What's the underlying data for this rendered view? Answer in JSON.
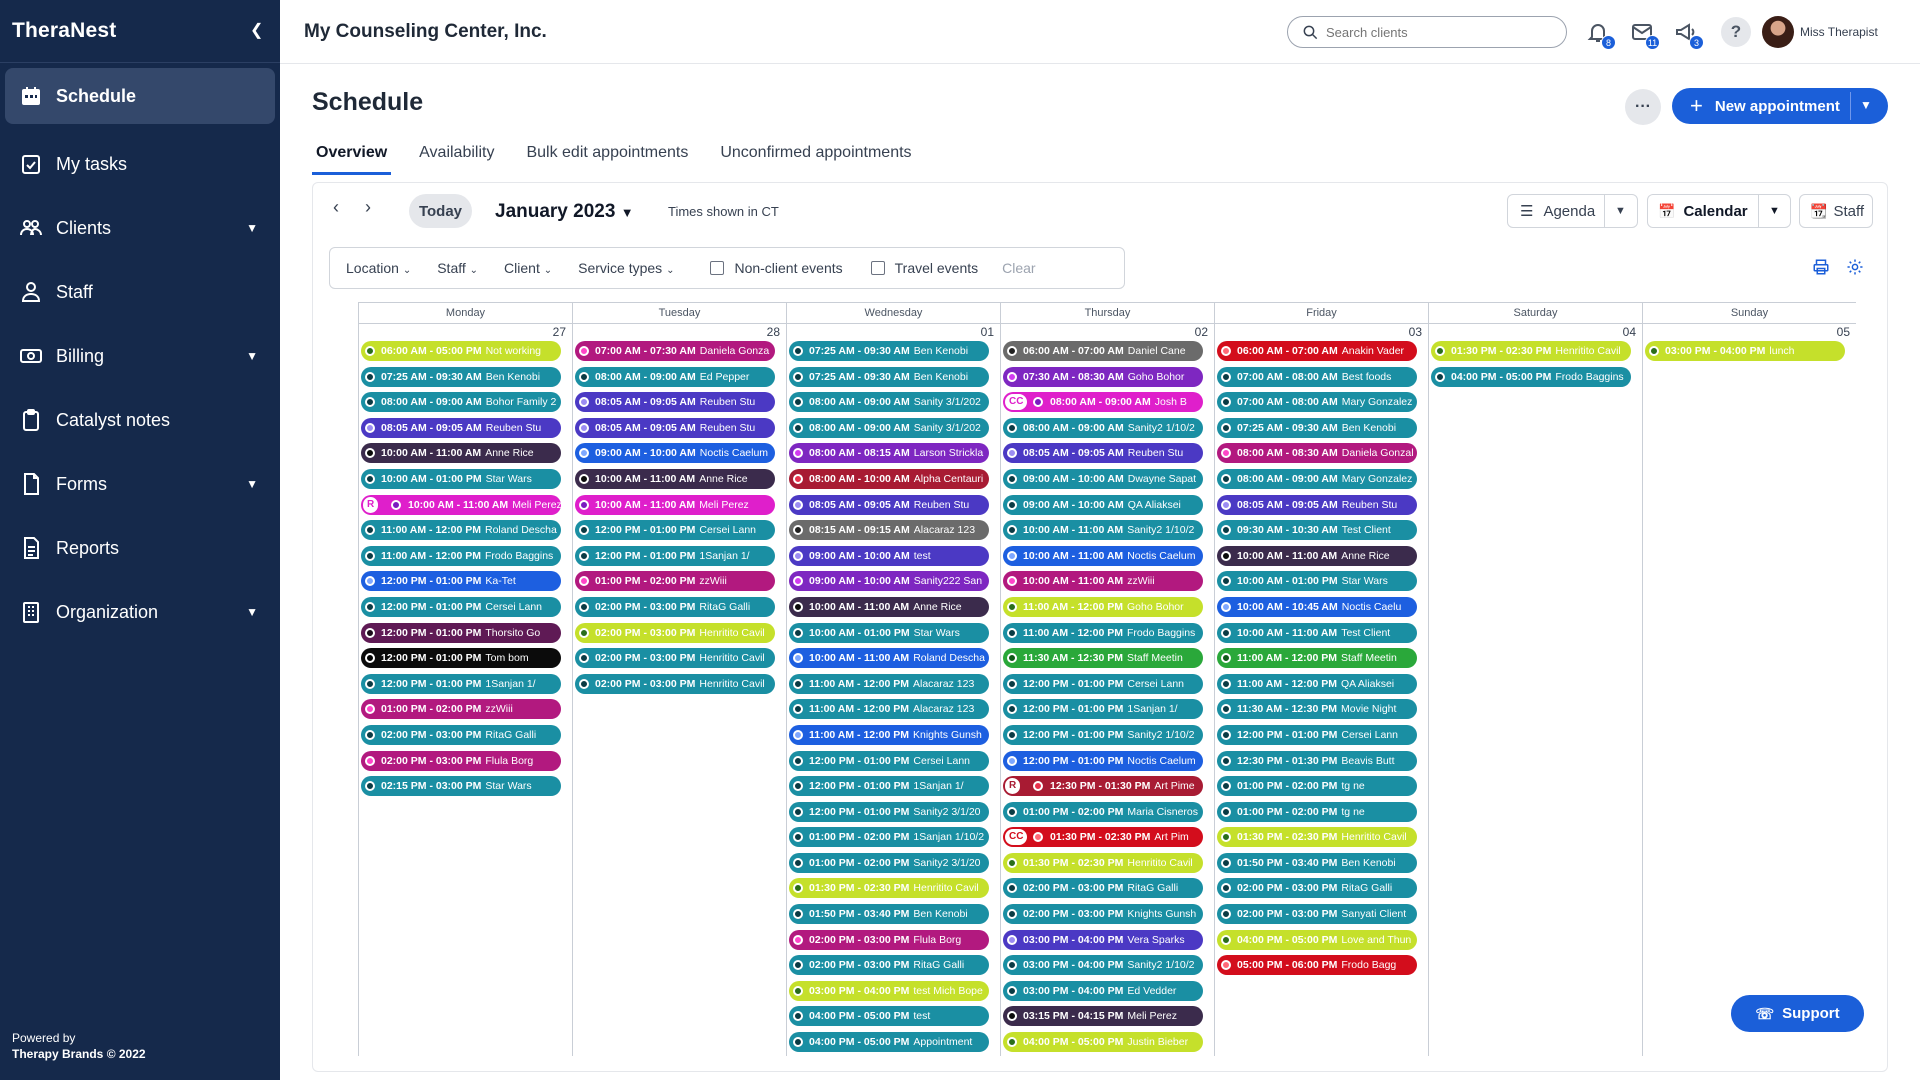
{
  "sidebar": {
    "logo": "TheraNest",
    "items": [
      {
        "label": "Schedule",
        "icon": "calendar-icon",
        "active": true,
        "chevron": false
      },
      {
        "label": "My tasks",
        "icon": "task-check-icon",
        "active": false,
        "chevron": false
      },
      {
        "label": "Clients",
        "icon": "users-icon",
        "active": false,
        "chevron": true
      },
      {
        "label": "Staff",
        "icon": "staff-icon",
        "active": false,
        "chevron": false
      },
      {
        "label": "Billing",
        "icon": "money-icon",
        "active": false,
        "chevron": true
      },
      {
        "label": "Catalyst notes",
        "icon": "clipboard-icon",
        "active": false,
        "chevron": false
      },
      {
        "label": "Forms",
        "icon": "form-icon",
        "active": false,
        "chevron": true
      },
      {
        "label": "Reports",
        "icon": "report-icon",
        "active": false,
        "chevron": false
      },
      {
        "label": "Organization",
        "icon": "building-icon",
        "active": false,
        "chevron": true
      }
    ],
    "powered_line1": "Powered by",
    "powered_line2": "Therapy Brands © 2022"
  },
  "header": {
    "org_name": "My Counseling Center, Inc.",
    "search_placeholder": "Search clients",
    "notifications_count": "8",
    "messages_count": "11",
    "announcements_count": "3",
    "help_label": "?",
    "user_name": "Miss Therapist"
  },
  "page": {
    "title": "Schedule",
    "more_label": "···",
    "new_appointment_label": "New appointment",
    "tabs": [
      "Overview",
      "Availability",
      "Bulk edit appointments",
      "Unconfirmed appointments"
    ]
  },
  "toolbar": {
    "today_label": "Today",
    "month_label": "January 2023",
    "timezone_label": "Times shown in CT",
    "agenda_label": "Agenda",
    "calendar_label": "Calendar",
    "staff_label": "Staff"
  },
  "filters": {
    "location": "Location",
    "staff": "Staff",
    "client": "Client",
    "service_types": "Service types",
    "non_client_events": "Non-client events",
    "travel_events": "Travel events",
    "clear": "Clear"
  },
  "support_label": "Support",
  "colors": {
    "teal": "#1a8fa3",
    "navy": "#3d2a96",
    "purple": "#7e27c1",
    "magenta": "#b2197f",
    "violet": "#4b39c4",
    "pink": "#df1fcb",
    "lime": "#c5e02b",
    "black": "#0b0b0b",
    "blue": "#1d5fe0",
    "red": "#d30d1c",
    "plum": "#5f1a55",
    "slate": "#6b6b6b",
    "green": "#2aa83a",
    "maroon": "#a81b33",
    "dark": "#3b2b4c"
  },
  "calendar": {
    "days": [
      {
        "name": "Monday",
        "num": "27",
        "events": [
          {
            "time": "06:00 AM - 05:00 PM",
            "name": "Not working",
            "color": "lime"
          },
          {
            "time": "07:25 AM - 09:30 AM",
            "name": "Ben Kenobi",
            "color": "teal"
          },
          {
            "time": "08:00 AM - 09:00 AM",
            "name": "Bohor Family 2",
            "color": "teal"
          },
          {
            "time": "08:05 AM - 09:05 AM",
            "name": "Reuben Stu",
            "color": "violet"
          },
          {
            "time": "10:00 AM - 11:00 AM",
            "name": "Anne Rice",
            "color": "dark"
          },
          {
            "time": "10:00 AM - 01:00 PM",
            "name": "Star Wars",
            "color": "teal"
          },
          {
            "time": "10:00 AM - 11:00 AM",
            "name": "Meli Perez",
            "color": "pink",
            "tag": "R"
          },
          {
            "time": "11:00 AM - 12:00 PM",
            "name": "Roland Descha",
            "color": "teal"
          },
          {
            "time": "11:00 AM - 12:00 PM",
            "name": "Frodo Baggins",
            "color": "teal"
          },
          {
            "time": "12:00 PM - 01:00 PM",
            "name": "Ka-Tet",
            "color": "blue"
          },
          {
            "time": "12:00 PM - 01:00 PM",
            "name": "Cersei Lann",
            "color": "teal"
          },
          {
            "time": "12:00 PM - 01:00 PM",
            "name": "Thorsito Go",
            "color": "plum"
          },
          {
            "time": "12:00 PM - 01:00 PM",
            "name": "Tom bom",
            "color": "black"
          },
          {
            "time": "12:00 PM - 01:00 PM",
            "name": "1Sanjan 1/",
            "color": "teal"
          },
          {
            "time": "01:00 PM - 02:00 PM",
            "name": "zzWiii",
            "color": "magenta"
          },
          {
            "time": "02:00 PM - 03:00 PM",
            "name": "RitaG Galli",
            "color": "teal"
          },
          {
            "time": "02:00 PM - 03:00 PM",
            "name": "Flula Borg",
            "color": "magenta"
          },
          {
            "time": "02:15 PM - 03:00 PM",
            "name": "Star Wars",
            "color": "teal"
          }
        ]
      },
      {
        "name": "Tuesday",
        "num": "28",
        "events": [
          {
            "time": "07:00 AM - 07:30 AM",
            "name": "Daniela Gonza",
            "color": "magenta"
          },
          {
            "time": "08:00 AM - 09:00 AM",
            "name": "Ed Pepper",
            "color": "teal"
          },
          {
            "time": "08:05 AM - 09:05 AM",
            "name": "Reuben Stu",
            "color": "violet"
          },
          {
            "time": "08:05 AM - 09:05 AM",
            "name": "Reuben Stu",
            "color": "violet"
          },
          {
            "time": "09:00 AM - 10:00 AM",
            "name": "Noctis Caelum",
            "color": "blue"
          },
          {
            "time": "10:00 AM - 11:00 AM",
            "name": "Anne Rice",
            "color": "dark"
          },
          {
            "time": "10:00 AM - 11:00 AM",
            "name": "Meli Perez",
            "color": "pink"
          },
          {
            "time": "12:00 PM - 01:00 PM",
            "name": "Cersei Lann",
            "color": "teal"
          },
          {
            "time": "12:00 PM - 01:00 PM",
            "name": "1Sanjan 1/",
            "color": "teal"
          },
          {
            "time": "01:00 PM - 02:00 PM",
            "name": "zzWiii",
            "color": "magenta"
          },
          {
            "time": "02:00 PM - 03:00 PM",
            "name": "RitaG Galli",
            "color": "teal"
          },
          {
            "time": "02:00 PM - 03:00 PM",
            "name": "Henritito Cavil",
            "color": "lime"
          },
          {
            "time": "02:00 PM - 03:00 PM",
            "name": "Henritito Cavil",
            "color": "teal"
          },
          {
            "time": "02:00 PM - 03:00 PM",
            "name": "Henritito Cavil",
            "color": "teal"
          }
        ]
      },
      {
        "name": "Wednesday",
        "num": "01",
        "events": [
          {
            "time": "07:25 AM - 09:30 AM",
            "name": "Ben Kenobi",
            "color": "teal"
          },
          {
            "time": "07:25 AM - 09:30 AM",
            "name": "Ben Kenobi",
            "color": "teal"
          },
          {
            "time": "08:00 AM - 09:00 AM",
            "name": "Sanity 3/1/202",
            "color": "teal"
          },
          {
            "time": "08:00 AM - 09:00 AM",
            "name": "Sanity 3/1/202",
            "color": "teal"
          },
          {
            "time": "08:00 AM - 08:15 AM",
            "name": "Larson Strickla",
            "color": "purple"
          },
          {
            "time": "08:00 AM - 10:00 AM",
            "name": "Alpha Centauri",
            "color": "maroon"
          },
          {
            "time": "08:05 AM - 09:05 AM",
            "name": "Reuben Stu",
            "color": "violet"
          },
          {
            "time": "08:15 AM - 09:15 AM",
            "name": "Alacaraz 123",
            "color": "slate"
          },
          {
            "time": "09:00 AM - 10:00 AM",
            "name": "test",
            "color": "violet"
          },
          {
            "time": "09:00 AM - 10:00 AM",
            "name": "Sanity222 San",
            "color": "purple"
          },
          {
            "time": "10:00 AM - 11:00 AM",
            "name": "Anne Rice",
            "color": "dark"
          },
          {
            "time": "10:00 AM - 01:00 PM",
            "name": "Star Wars",
            "color": "teal"
          },
          {
            "time": "10:00 AM - 11:00 AM",
            "name": "Roland Descha",
            "color": "blue"
          },
          {
            "time": "11:00 AM - 12:00 PM",
            "name": "Alacaraz 123",
            "color": "teal"
          },
          {
            "time": "11:00 AM - 12:00 PM",
            "name": "Alacaraz 123",
            "color": "teal"
          },
          {
            "time": "11:00 AM - 12:00 PM",
            "name": "Knights Gunsh",
            "color": "blue"
          },
          {
            "time": "12:00 PM - 01:00 PM",
            "name": "Cersei Lann",
            "color": "teal"
          },
          {
            "time": "12:00 PM - 01:00 PM",
            "name": "1Sanjan 1/",
            "color": "teal"
          },
          {
            "time": "12:00 PM - 01:00 PM",
            "name": "Sanity2 3/1/20",
            "color": "teal"
          },
          {
            "time": "01:00 PM - 02:00 PM",
            "name": "1Sanjan 1/10/2",
            "color": "teal"
          },
          {
            "time": "01:00 PM - 02:00 PM",
            "name": "Sanity2 3/1/20",
            "color": "teal"
          },
          {
            "time": "01:30 PM - 02:30 PM",
            "name": "Henritito Cavil",
            "color": "lime"
          },
          {
            "time": "01:50 PM - 03:40 PM",
            "name": "Ben Kenobi",
            "color": "teal"
          },
          {
            "time": "02:00 PM - 03:00 PM",
            "name": "Flula Borg",
            "color": "magenta"
          },
          {
            "time": "02:00 PM - 03:00 PM",
            "name": "RitaG Galli",
            "color": "teal"
          },
          {
            "time": "03:00 PM - 04:00 PM",
            "name": "test Mich Bope",
            "color": "lime"
          },
          {
            "time": "04:00 PM - 05:00 PM",
            "name": "test",
            "color": "teal"
          },
          {
            "time": "04:00 PM - 05:00 PM",
            "name": "Appointment",
            "color": "teal"
          }
        ]
      },
      {
        "name": "Thursday",
        "num": "02",
        "events": [
          {
            "time": "06:00 AM - 07:00 AM",
            "name": "Daniel Cane",
            "color": "slate"
          },
          {
            "time": "07:30 AM - 08:30 AM",
            "name": "Goho Bohor",
            "color": "purple"
          },
          {
            "time": "08:00 AM - 09:00 AM",
            "name": "Josh B",
            "color": "pink",
            "tag": "CC"
          },
          {
            "time": "08:00 AM - 09:00 AM",
            "name": "Sanity2 1/10/2",
            "color": "teal"
          },
          {
            "time": "08:05 AM - 09:05 AM",
            "name": "Reuben Stu",
            "color": "violet"
          },
          {
            "time": "09:00 AM - 10:00 AM",
            "name": "Dwayne Sapat",
            "color": "teal"
          },
          {
            "time": "09:00 AM - 10:00 AM",
            "name": "QA Aliaksei",
            "color": "teal"
          },
          {
            "time": "10:00 AM - 11:00 AM",
            "name": "Sanity2 1/10/2",
            "color": "teal"
          },
          {
            "time": "10:00 AM - 11:00 AM",
            "name": "Noctis Caelum",
            "color": "blue"
          },
          {
            "time": "10:00 AM - 11:00 AM",
            "name": "zzWiii",
            "color": "magenta"
          },
          {
            "time": "11:00 AM - 12:00 PM",
            "name": "Goho Bohor",
            "color": "lime"
          },
          {
            "time": "11:00 AM - 12:00 PM",
            "name": "Frodo Baggins",
            "color": "teal"
          },
          {
            "time": "11:30 AM - 12:30 PM",
            "name": "Staff Meetin",
            "color": "green"
          },
          {
            "time": "12:00 PM - 01:00 PM",
            "name": "Cersei Lann",
            "color": "teal"
          },
          {
            "time": "12:00 PM - 01:00 PM",
            "name": "1Sanjan 1/",
            "color": "teal"
          },
          {
            "time": "12:00 PM - 01:00 PM",
            "name": "Sanity2 1/10/2",
            "color": "teal"
          },
          {
            "time": "12:00 PM - 01:00 PM",
            "name": "Noctis Caelum",
            "color": "blue"
          },
          {
            "time": "12:30 PM - 01:30 PM",
            "name": "Art Pime",
            "color": "maroon",
            "tag": "R"
          },
          {
            "time": "01:00 PM - 02:00 PM",
            "name": "Maria Cisneros",
            "color": "teal"
          },
          {
            "time": "01:30 PM - 02:30 PM",
            "name": "Art Pim",
            "color": "red",
            "tag": "CC"
          },
          {
            "time": "01:30 PM - 02:30 PM",
            "name": "Henritito Cavil",
            "color": "lime"
          },
          {
            "time": "02:00 PM - 03:00 PM",
            "name": "RitaG Galli",
            "color": "teal"
          },
          {
            "time": "02:00 PM - 03:00 PM",
            "name": "Knights Gunsh",
            "color": "teal"
          },
          {
            "time": "03:00 PM - 04:00 PM",
            "name": "Vera Sparks",
            "color": "violet"
          },
          {
            "time": "03:00 PM - 04:00 PM",
            "name": "Sanity2 1/10/2",
            "color": "teal"
          },
          {
            "time": "03:00 PM - 04:00 PM",
            "name": "Ed Vedder",
            "color": "teal"
          },
          {
            "time": "03:15 PM - 04:15 PM",
            "name": "Meli Perez",
            "color": "dark"
          },
          {
            "time": "04:00 PM - 05:00 PM",
            "name": "Justin Bieber",
            "color": "lime"
          }
        ]
      },
      {
        "name": "Friday",
        "num": "03",
        "events": [
          {
            "time": "06:00 AM - 07:00 AM",
            "name": "Anakin Vader",
            "color": "red"
          },
          {
            "time": "07:00 AM - 08:00 AM",
            "name": "Best foods",
            "color": "teal"
          },
          {
            "time": "07:00 AM - 08:00 AM",
            "name": "Mary Gonzalez",
            "color": "teal"
          },
          {
            "time": "07:25 AM - 09:30 AM",
            "name": "Ben Kenobi",
            "color": "teal"
          },
          {
            "time": "08:00 AM - 08:30 AM",
            "name": "Daniela Gonzal",
            "color": "magenta"
          },
          {
            "time": "08:00 AM - 09:00 AM",
            "name": "Mary Gonzalez",
            "color": "teal"
          },
          {
            "time": "08:05 AM - 09:05 AM",
            "name": "Reuben Stu",
            "color": "violet"
          },
          {
            "time": "09:30 AM - 10:30 AM",
            "name": "Test Client",
            "color": "teal"
          },
          {
            "time": "10:00 AM - 11:00 AM",
            "name": "Anne Rice",
            "color": "dark"
          },
          {
            "time": "10:00 AM - 01:00 PM",
            "name": "Star Wars",
            "color": "teal"
          },
          {
            "time": "10:00 AM - 10:45 AM",
            "name": "Noctis Caelu",
            "color": "blue"
          },
          {
            "time": "10:00 AM - 11:00 AM",
            "name": "Test Client",
            "color": "teal"
          },
          {
            "time": "11:00 AM - 12:00 PM",
            "name": "Staff Meetin",
            "color": "green"
          },
          {
            "time": "11:00 AM - 12:00 PM",
            "name": "QA Aliaksei",
            "color": "teal"
          },
          {
            "time": "11:30 AM - 12:30 PM",
            "name": "Movie Night",
            "color": "teal"
          },
          {
            "time": "12:00 PM - 01:00 PM",
            "name": "Cersei Lann",
            "color": "teal"
          },
          {
            "time": "12:30 PM - 01:30 PM",
            "name": "Beavis Butt",
            "color": "teal"
          },
          {
            "time": "01:00 PM - 02:00 PM",
            "name": "tg ne",
            "color": "teal"
          },
          {
            "time": "01:00 PM - 02:00 PM",
            "name": "tg ne",
            "color": "teal"
          },
          {
            "time": "01:30 PM - 02:30 PM",
            "name": "Henritito Cavil",
            "color": "lime"
          },
          {
            "time": "01:50 PM - 03:40 PM",
            "name": "Ben Kenobi",
            "color": "teal"
          },
          {
            "time": "02:00 PM - 03:00 PM",
            "name": "RitaG Galli",
            "color": "teal"
          },
          {
            "time": "02:00 PM - 03:00 PM",
            "name": "Sanyati Client",
            "color": "teal"
          },
          {
            "time": "04:00 PM - 05:00 PM",
            "name": "Love and Thun",
            "color": "lime"
          },
          {
            "time": "05:00 PM - 06:00 PM",
            "name": "Frodo Bagg",
            "color": "red"
          }
        ]
      },
      {
        "name": "Saturday",
        "num": "04",
        "events": [
          {
            "time": "01:30 PM - 02:30 PM",
            "name": "Henritito Cavil",
            "color": "lime"
          },
          {
            "time": "04:00 PM - 05:00 PM",
            "name": "Frodo Baggins",
            "color": "teal"
          }
        ]
      },
      {
        "name": "Sunday",
        "num": "05",
        "events": [
          {
            "time": "03:00 PM - 04:00 PM",
            "name": "lunch",
            "color": "lime"
          }
        ]
      }
    ]
  }
}
